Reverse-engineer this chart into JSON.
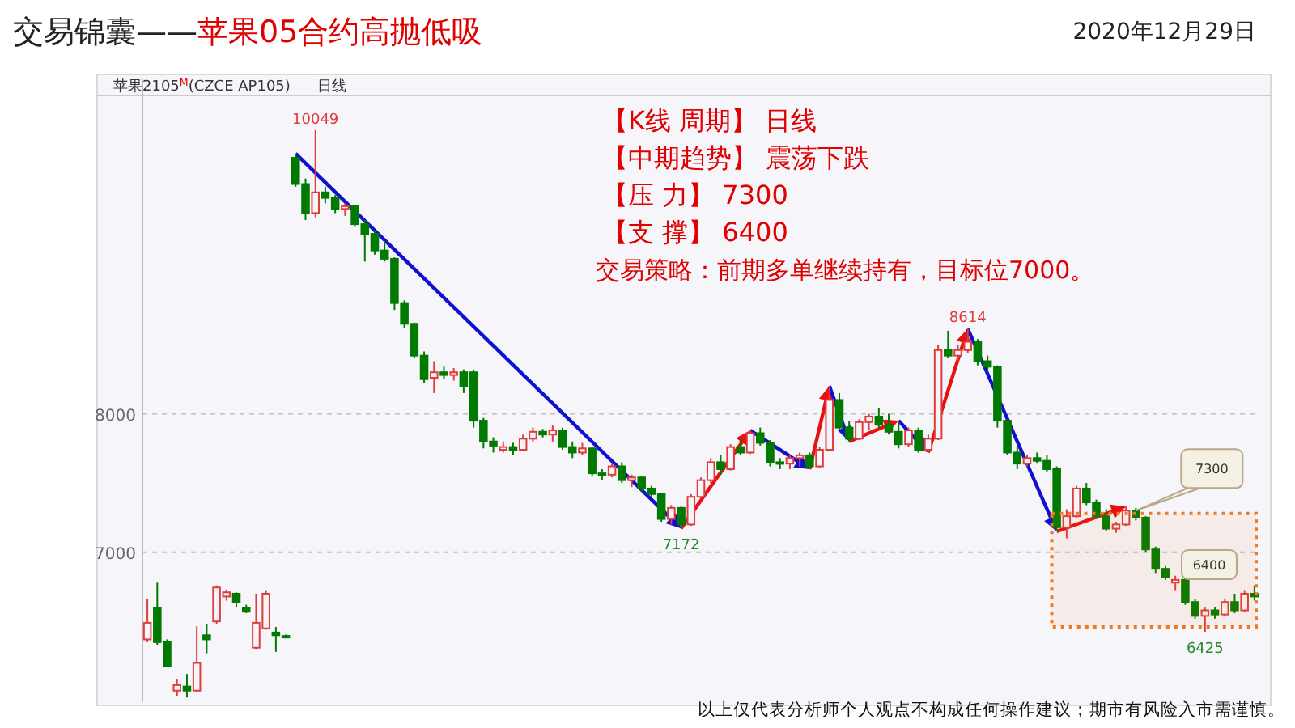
{
  "chart_data": {
    "type": "candlestick",
    "title": "交易锦囊——",
    "subtitle": "苹果05合约高抛低吸",
    "categories": [
      null,
      null,
      null,
      null,
      null,
      null,
      null,
      null,
      null,
      null,
      null,
      null,
      null,
      null,
      null,
      null,
      null,
      null,
      null,
      null,
      null,
      null,
      null,
      null,
      null,
      null,
      null,
      null,
      null,
      null,
      null,
      null,
      null,
      null,
      null,
      null,
      null,
      null,
      null,
      null,
      null,
      null,
      null,
      null,
      null,
      null,
      null,
      null,
      null,
      null,
      null,
      null,
      null,
      null,
      null,
      null,
      null,
      null,
      null,
      null,
      null,
      null,
      null,
      null,
      null,
      null,
      null,
      null,
      null,
      null,
      null,
      null,
      null,
      null,
      null,
      null,
      null,
      null,
      null,
      null,
      null,
      null,
      null,
      null,
      null,
      null,
      null,
      null,
      null,
      null,
      null,
      null,
      null,
      null,
      null,
      null,
      null,
      null,
      null,
      null,
      null,
      null,
      null,
      null,
      null,
      null,
      null,
      null,
      null,
      null,
      null,
      null,
      null
    ],
    "ohlc": [
      [
        6370,
        6660,
        6350,
        6490
      ],
      [
        6600,
        6780,
        6330,
        6350
      ],
      [
        6350,
        6370,
        6170,
        6175
      ],
      [
        6000,
        6080,
        5960,
        6040
      ],
      [
        6030,
        6120,
        5950,
        6000
      ],
      [
        6000,
        6465,
        5990,
        6200
      ],
      [
        6400,
        6480,
        6270,
        6370
      ],
      [
        6500,
        6760,
        6480,
        6745
      ],
      [
        6680,
        6730,
        6650,
        6710
      ],
      [
        6700,
        6710,
        6600,
        6640
      ],
      [
        6600,
        6620,
        6560,
        6570
      ],
      [
        6310,
        6700,
        6300,
        6490
      ],
      [
        6450,
        6720,
        6440,
        6700
      ],
      [
        6420,
        6460,
        6280,
        6400
      ],
      [
        6395,
        6405,
        6385,
        6390
      ],
      [
        9850,
        9880,
        9640,
        9660
      ],
      [
        9660,
        9700,
        9400,
        9450
      ],
      [
        9450,
        10049,
        9420,
        9600
      ],
      [
        9600,
        9640,
        9520,
        9560
      ],
      [
        9560,
        9580,
        9450,
        9480
      ],
      [
        9480,
        9520,
        9430,
        9500
      ],
      [
        9500,
        9510,
        9350,
        9370
      ],
      [
        9370,
        9400,
        9100,
        9300
      ],
      [
        9300,
        9320,
        9150,
        9180
      ],
      [
        9180,
        9250,
        9100,
        9120
      ],
      [
        9120,
        9130,
        8750,
        8800
      ],
      [
        8800,
        8820,
        8620,
        8650
      ],
      [
        8650,
        8660,
        8400,
        8420
      ],
      [
        8420,
        8450,
        8220,
        8250
      ],
      [
        8260,
        8380,
        8150,
        8300
      ],
      [
        8300,
        8340,
        8250,
        8280
      ],
      [
        8280,
        8330,
        8240,
        8300
      ],
      [
        8300,
        8320,
        8150,
        8200
      ],
      [
        8300,
        8320,
        7900,
        7950
      ],
      [
        7950,
        7970,
        7750,
        7800
      ],
      [
        7800,
        7830,
        7720,
        7770
      ],
      [
        7740,
        7800,
        7720,
        7760
      ],
      [
        7760,
        7790,
        7700,
        7740
      ],
      [
        7740,
        7850,
        7730,
        7820
      ],
      [
        7820,
        7900,
        7800,
        7870
      ],
      [
        7870,
        7890,
        7830,
        7850
      ],
      [
        7850,
        7920,
        7800,
        7880
      ],
      [
        7880,
        7900,
        7740,
        7760
      ],
      [
        7760,
        7800,
        7680,
        7720
      ],
      [
        7720,
        7790,
        7700,
        7750
      ],
      [
        7750,
        7760,
        7550,
        7570
      ],
      [
        7570,
        7600,
        7520,
        7560
      ],
      [
        7560,
        7640,
        7540,
        7620
      ],
      [
        7620,
        7650,
        7500,
        7520
      ],
      [
        7520,
        7560,
        7470,
        7540
      ],
      [
        7540,
        7550,
        7440,
        7460
      ],
      [
        7460,
        7480,
        7400,
        7420
      ],
      [
        7420,
        7430,
        7220,
        7240
      ],
      [
        7240,
        7340,
        7200,
        7320
      ],
      [
        7320,
        7330,
        7172,
        7200
      ],
      [
        7200,
        7420,
        7190,
        7400
      ],
      [
        7400,
        7540,
        7390,
        7520
      ],
      [
        7520,
        7680,
        7500,
        7650
      ],
      [
        7650,
        7700,
        7560,
        7600
      ],
      [
        7600,
        7780,
        7590,
        7760
      ],
      [
        7760,
        7820,
        7700,
        7720
      ],
      [
        7720,
        7880,
        7710,
        7860
      ],
      [
        7860,
        7900,
        7770,
        7790
      ],
      [
        7790,
        7810,
        7620,
        7650
      ],
      [
        7650,
        7680,
        7600,
        7640
      ],
      [
        7640,
        7700,
        7600,
        7680
      ],
      [
        7680,
        7720,
        7620,
        7700
      ],
      [
        7700,
        7720,
        7600,
        7620
      ],
      [
        7620,
        7760,
        7610,
        7740
      ],
      [
        7740,
        8200,
        7730,
        8100
      ],
      [
        8100,
        8150,
        7880,
        7900
      ],
      [
        7900,
        7950,
        7800,
        7820
      ],
      [
        7820,
        7960,
        7810,
        7940
      ],
      [
        7940,
        8000,
        7880,
        7980
      ],
      [
        7980,
        8040,
        7900,
        7920
      ],
      [
        7920,
        8000,
        7850,
        7870
      ],
      [
        7870,
        7950,
        7750,
        7780
      ],
      [
        7780,
        7900,
        7760,
        7880
      ],
      [
        7880,
        7900,
        7720,
        7740
      ],
      [
        7740,
        7850,
        7720,
        7820
      ],
      [
        7820,
        8500,
        7810,
        8460
      ],
      [
        8460,
        8600,
        8400,
        8420
      ],
      [
        8420,
        8500,
        8380,
        8460
      ],
      [
        8460,
        8614,
        8440,
        8520
      ],
      [
        8520,
        8540,
        8350,
        8380
      ],
      [
        8380,
        8420,
        8300,
        8340
      ],
      [
        8340,
        8350,
        7900,
        7950
      ],
      [
        7950,
        7960,
        7700,
        7720
      ],
      [
        7720,
        7760,
        7600,
        7640
      ],
      [
        7640,
        7700,
        7620,
        7680
      ],
      [
        7680,
        7720,
        7640,
        7660
      ],
      [
        7660,
        7700,
        7580,
        7600
      ],
      [
        7600,
        7620,
        7150,
        7180
      ],
      [
        7180,
        7310,
        7100,
        7260
      ],
      [
        7260,
        7480,
        7250,
        7460
      ],
      [
        7460,
        7500,
        7340,
        7360
      ],
      [
        7360,
        7380,
        7240,
        7260
      ],
      [
        7260,
        7310,
        7150,
        7170
      ],
      [
        7170,
        7220,
        7140,
        7200
      ],
      [
        7200,
        7330,
        7190,
        7300
      ],
      [
        7300,
        7320,
        7230,
        7250
      ],
      [
        7250,
        7260,
        7000,
        7020
      ],
      [
        7020,
        7040,
        6850,
        6880
      ],
      [
        6880,
        6900,
        6800,
        6820
      ],
      [
        6780,
        6830,
        6720,
        6800
      ],
      [
        6800,
        6810,
        6620,
        6640
      ],
      [
        6640,
        6660,
        6520,
        6540
      ],
      [
        6540,
        6600,
        6425,
        6580
      ],
      [
        6580,
        6600,
        6520,
        6550
      ],
      [
        6550,
        6660,
        6540,
        6640
      ],
      [
        6640,
        6700,
        6560,
        6580
      ],
      [
        6580,
        6720,
        6570,
        6700
      ],
      [
        6700,
        6760,
        6650,
        6680
      ]
    ],
    "bands": [
      {
        "axis": "y",
        "from": 6460,
        "to": 7280,
        "color": "#f07820"
      }
    ],
    "ylim": [
      5940,
      10300
    ],
    "yticks": [
      8000,
      7000
    ],
    "grid": "y",
    "annotations": [
      "2020年12月29日",
      "苹果2105$^{M}$(CZCE AP105)",
      "日线",
      "【K线 周期】   日线",
      "【中期趋势】   震荡下跌",
      "【压        力】   7300",
      "【支        撑】   6400",
      "交易策略：前期多单继续持有，目标位7000。",
      "以上仅代表分析师个人观点不构成任何操作建议；期市有风险入市需谨慎。",
      "6400",
      {
        "text": "10049",
        "y": 10049
      },
      {
        "text": "7172",
        "y": 7172
      },
      {
        "text": "8614",
        "y": 8614
      },
      {
        "text": "6425",
        "y": 6425
      },
      {
        "text": "7300",
        "y": 7300
      }
    ]
  }
}
